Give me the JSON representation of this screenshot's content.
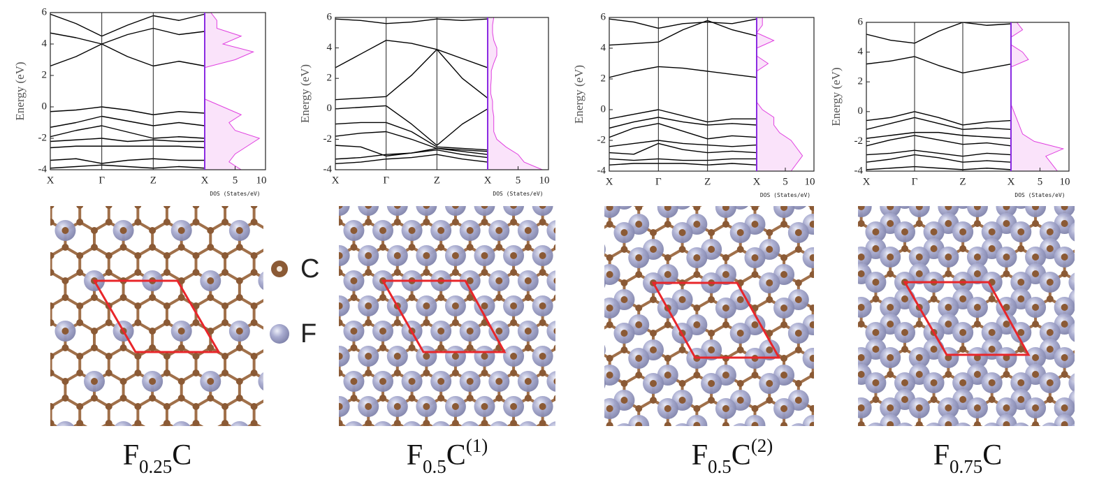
{
  "chart_data": [
    {
      "type": "band",
      "ylabel": "Energy  (eV)",
      "ylim": [
        -4,
        6
      ],
      "yticks": [
        -4,
        -2,
        0,
        2,
        4,
        6
      ],
      "xlim": [
        0,
        3
      ],
      "xticks": [
        {
          "value": 0,
          "label": "X"
        },
        {
          "value": 1,
          "label": "Γ"
        },
        {
          "value": 2,
          "label": "Z"
        },
        {
          "value": 3,
          "label": "X"
        }
      ],
      "x": [
        0,
        0.5,
        1,
        1.5,
        2,
        2.5,
        3
      ],
      "color": "#000000",
      "series": [
        {
          "values": [
            -3.9,
            -3.8,
            -3.7,
            -3.8,
            -3.9,
            -3.8,
            -3.9
          ]
        },
        {
          "values": [
            -3.4,
            -3.3,
            -3.6,
            -3.4,
            -3.3,
            -3.4,
            -3.4
          ]
        },
        {
          "values": [
            -2.6,
            -2.5,
            -2.5,
            -2.5,
            -2.5,
            -2.5,
            -2.6
          ]
        },
        {
          "values": [
            -2.2,
            -2.1,
            -2.0,
            -2.2,
            -2.1,
            -2.2,
            -2.2
          ]
        },
        {
          "values": [
            -1.9,
            -1.5,
            -1.2,
            -1.6,
            -2.0,
            -1.9,
            -2.0
          ]
        },
        {
          "values": [
            -1.3,
            -1.0,
            -0.6,
            -0.9,
            -1.2,
            -1.0,
            -1.2
          ]
        },
        {
          "values": [
            -0.3,
            -0.2,
            0,
            -0.2,
            -0.5,
            -0.3,
            -0.4
          ]
        },
        {
          "values": [
            2.6,
            3.2,
            4.0,
            3.2,
            2.6,
            2.9,
            2.6
          ]
        },
        {
          "values": [
            4.7,
            4.4,
            4.0,
            4.6,
            5.0,
            4.6,
            4.8
          ]
        },
        {
          "values": [
            5.9,
            5.3,
            4.5,
            5.2,
            5.8,
            5.5,
            5.9
          ]
        }
      ],
      "dos": {
        "xlabel": "DOS (States/eV)",
        "xlim": [
          0,
          10
        ],
        "xticks": [
          5,
          10
        ],
        "color": "#e040e0",
        "energy": [
          -4,
          -3.5,
          -3,
          -2.5,
          -2,
          -1.5,
          -1,
          -0.5,
          0,
          0.5,
          1,
          1.5,
          2,
          2.5,
          3,
          3.5,
          4,
          4.5,
          5,
          5.5,
          6
        ],
        "values": [
          6,
          4,
          5,
          7,
          9,
          5,
          4,
          6,
          3,
          0,
          0,
          0,
          0,
          0,
          5,
          8,
          3,
          6,
          2,
          2,
          1
        ]
      },
      "caption": {
        "base": "F",
        "sub": "0.25",
        "tail": "C"
      }
    },
    {
      "type": "band",
      "ylabel": "Energy  (eV)",
      "ylim": [
        -4,
        6
      ],
      "yticks": [
        -4,
        -2,
        0,
        2,
        4,
        6
      ],
      "xlim": [
        0,
        3
      ],
      "xticks": [
        {
          "value": 0,
          "label": "X"
        },
        {
          "value": 1,
          "label": "Γ"
        },
        {
          "value": 2,
          "label": "Z"
        },
        {
          "value": 3,
          "label": "X"
        }
      ],
      "x": [
        0,
        0.5,
        1,
        1.5,
        2,
        2.5,
        3
      ],
      "color": "#000000",
      "series": [
        {
          "values": [
            -3.6,
            -3.5,
            -3.3,
            -3.2,
            -3.0,
            -3.3,
            -3.5
          ]
        },
        {
          "values": [
            -3.3,
            -3.2,
            -3.0,
            -2.9,
            -2.7,
            -3.0,
            -3.2
          ]
        },
        {
          "values": [
            -2.4,
            -2.5,
            -3.1,
            -2.9,
            -2.6,
            -2.8,
            -3.0
          ]
        },
        {
          "values": [
            -1.8,
            -1.6,
            -1.5,
            -2.0,
            -2.6,
            -2.7,
            -2.8
          ]
        },
        {
          "values": [
            -1.0,
            -0.9,
            -0.9,
            -1.5,
            -2.5,
            -2.6,
            -2.7
          ]
        },
        {
          "values": [
            0,
            0.1,
            0.2,
            -1.0,
            -2.4,
            -1.0,
            0
          ]
        },
        {
          "values": [
            0.6,
            0.7,
            0.8,
            2.2,
            3.9,
            2.0,
            0.7
          ]
        },
        {
          "values": [
            2.7,
            3.6,
            4.5,
            4.3,
            3.9,
            3.3,
            2.7
          ]
        },
        {
          "values": [
            5.9,
            5.8,
            5.6,
            5.7,
            5.9,
            5.8,
            5.9
          ]
        }
      ],
      "dos": {
        "xlabel": "DOS (States/eV)",
        "xlim": [
          0,
          10
        ],
        "xticks": [
          5,
          10
        ],
        "color": "#e040e0",
        "energy": [
          -4,
          -3.5,
          -3,
          -2.5,
          -2,
          -1.5,
          -1,
          -0.5,
          0,
          0.5,
          1,
          1.5,
          2,
          2.5,
          3,
          3.5,
          4,
          4.5,
          5,
          5.5,
          6
        ],
        "values": [
          9,
          6,
          5,
          3,
          1.5,
          1,
          1,
          1,
          0.8,
          0.8,
          0.5,
          0.5,
          0.6,
          0.6,
          1,
          1.5,
          1.5,
          1,
          0.8,
          0.8,
          1
        ]
      },
      "caption": {
        "base": "F",
        "sub": "0.5",
        "tail": "C",
        "sup": "(1)"
      }
    },
    {
      "type": "band",
      "ylabel": "Energy  (eV)",
      "ylim": [
        -4,
        6
      ],
      "yticks": [
        -4,
        -2,
        0,
        2,
        4,
        6
      ],
      "xlim": [
        0,
        3
      ],
      "xticks": [
        {
          "value": 0,
          "label": "X"
        },
        {
          "value": 1,
          "label": "Γ"
        },
        {
          "value": 2,
          "label": "Z"
        },
        {
          "value": 3,
          "label": "X"
        }
      ],
      "x": [
        0,
        0.5,
        1,
        1.5,
        2,
        2.5,
        3
      ],
      "color": "#000000",
      "series": [
        {
          "values": [
            -3.6,
            -3.5,
            -3.5,
            -3.5,
            -3.6,
            -3.5,
            -3.6
          ]
        },
        {
          "values": [
            -3.2,
            -3.3,
            -3.2,
            -3.3,
            -3.3,
            -3.2,
            -3.2
          ]
        },
        {
          "values": [
            -2.8,
            -2.9,
            -2.2,
            -2.6,
            -2.8,
            -2.7,
            -2.8
          ]
        },
        {
          "values": [
            -2.4,
            -2.2,
            -2.0,
            -2.2,
            -2.3,
            -2.4,
            -2.3
          ]
        },
        {
          "values": [
            -1.8,
            -1.2,
            -0.9,
            -1.4,
            -1.9,
            -1.7,
            -1.8
          ]
        },
        {
          "values": [
            -1.2,
            -0.8,
            -0.5,
            -0.8,
            -1.0,
            -0.9,
            -1.0
          ]
        },
        {
          "values": [
            -0.6,
            -0.3,
            0,
            -0.4,
            -0.8,
            -0.6,
            -0.6
          ]
        },
        {
          "values": [
            2.1,
            2.5,
            2.8,
            2.7,
            2.5,
            2.3,
            2.1
          ]
        },
        {
          "values": [
            4.2,
            4.3,
            4.4,
            5.2,
            5.8,
            5.2,
            4.8
          ]
        },
        {
          "values": [
            5.9,
            5.7,
            5.3,
            5.6,
            5.7,
            5.6,
            5.9
          ]
        }
      ],
      "dos": {
        "xlabel": "DOS (States/eV)",
        "xlim": [
          0,
          10
        ],
        "xticks": [
          5,
          10
        ],
        "color": "#e040e0",
        "energy": [
          -4,
          -3.5,
          -3,
          -2.5,
          -2,
          -1.5,
          -1,
          -0.5,
          0,
          0.5,
          1,
          1.5,
          2,
          2.5,
          3,
          3.5,
          4,
          4.5,
          5,
          5.5,
          6
        ],
        "values": [
          6,
          7,
          8,
          7,
          6,
          4,
          3,
          3,
          1,
          0,
          0,
          0,
          0,
          0,
          2,
          0,
          0,
          3,
          0,
          1,
          1
        ]
      },
      "caption": {
        "base": "F",
        "sub": "0.5",
        "tail": "C",
        "sup": "(2)"
      }
    },
    {
      "type": "band",
      "ylabel": "Energy  (eV)",
      "ylim": [
        -4,
        6
      ],
      "yticks": [
        -4,
        -2,
        0,
        2,
        4,
        6
      ],
      "xlim": [
        0,
        3
      ],
      "xticks": [
        {
          "value": 0,
          "label": "X"
        },
        {
          "value": 1,
          "label": "Γ"
        },
        {
          "value": 2,
          "label": "Z"
        },
        {
          "value": 3,
          "label": "X"
        }
      ],
      "x": [
        0,
        0.5,
        1,
        1.5,
        2,
        2.5,
        3
      ],
      "color": "#000000",
      "series": [
        {
          "values": [
            -3.9,
            -3.8,
            -3.7,
            -3.8,
            -3.9,
            -3.8,
            -3.9
          ]
        },
        {
          "values": [
            -3.4,
            -3.2,
            -2.9,
            -3.1,
            -3.4,
            -3.3,
            -3.4
          ]
        },
        {
          "values": [
            -2.9,
            -2.8,
            -2.6,
            -2.8,
            -3.0,
            -2.8,
            -2.9
          ]
        },
        {
          "values": [
            -2.3,
            -1.9,
            -1.6,
            -1.9,
            -2.2,
            -2.1,
            -2.3
          ]
        },
        {
          "values": [
            -1.8,
            -1.6,
            -1.4,
            -1.4,
            -1.6,
            -1.7,
            -1.8
          ]
        },
        {
          "values": [
            -1.2,
            -0.8,
            -0.4,
            -0.8,
            -1.2,
            -1.1,
            -1.2
          ]
        },
        {
          "values": [
            -0.6,
            -0.4,
            0,
            -0.4,
            -0.9,
            -0.7,
            -0.6
          ]
        },
        {
          "values": [
            3.2,
            3.4,
            3.7,
            3.1,
            2.6,
            2.9,
            3.2
          ]
        },
        {
          "values": [
            5.2,
            4.8,
            4.6,
            5.4,
            6.0,
            5.8,
            5.9
          ]
        }
      ],
      "dos": {
        "xlabel": "DOS (States/eV)",
        "xlim": [
          0,
          10
        ],
        "xticks": [
          5,
          10
        ],
        "color": "#e040e0",
        "energy": [
          -4,
          -3.5,
          -3,
          -2.5,
          -2,
          -1.5,
          -1,
          -0.5,
          0,
          0.5,
          1,
          1.5,
          2,
          2.5,
          3,
          3.5,
          4,
          4.5,
          5,
          5.5,
          6
        ],
        "values": [
          8,
          7,
          6,
          9,
          4,
          2,
          1.5,
          1,
          0.5,
          0,
          0,
          0,
          0,
          0,
          0,
          3,
          2,
          0,
          0,
          2,
          1
        ]
      },
      "caption": {
        "base": "F",
        "sub": "0.75",
        "tail": "C"
      }
    }
  ],
  "atom_legend": [
    "C",
    "F"
  ]
}
